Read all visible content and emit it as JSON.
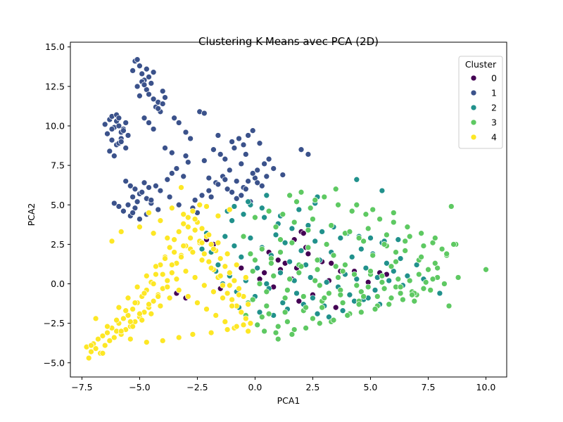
{
  "chart_data": {
    "type": "scatter",
    "title": "Clustering K-Means avec PCA (2D)",
    "xlabel": "PCA1",
    "ylabel": "PCA2",
    "xlim": [
      -8.0,
      10.9
    ],
    "ylim": [
      -5.9,
      15.3
    ],
    "xticks": [
      -7.5,
      -5.0,
      -2.5,
      0.0,
      2.5,
      5.0,
      7.5,
      10.0
    ],
    "xtick_labels": [
      "−7.5",
      "−5.0",
      "−2.5",
      "0.0",
      "2.5",
      "5.0",
      "7.5",
      "10.0"
    ],
    "yticks": [
      -5.0,
      -2.5,
      0.0,
      2.5,
      5.0,
      7.5,
      10.0,
      12.5,
      15.0
    ],
    "ytick_labels": [
      "−5.0",
      "−2.5",
      "0.0",
      "2.5",
      "5.0",
      "7.5",
      "10.0",
      "12.5",
      "15.0"
    ],
    "grid": false,
    "legend": {
      "title": "Cluster",
      "position": "top-right"
    },
    "series": [
      {
        "name": "0",
        "color": "#440154",
        "x": [
          -3.4,
          -3.0,
          -2.1,
          -1.8,
          -0.6,
          0.2,
          0.4,
          0.8,
          1.0,
          1.1,
          1.3,
          1.6,
          1.7,
          1.8,
          1.9,
          2.0,
          2.1,
          2.2,
          2.3,
          2.5,
          2.9,
          3.2,
          3.3,
          3.5,
          3.7,
          4.3,
          4.9,
          5.4,
          5.7,
          6.1,
          -1.5,
          0.6
        ],
        "y": [
          -0.6,
          -0.9,
          2.8,
          2.5,
          1.0,
          0.3,
          0.7,
          -0.2,
          1.5,
          0.9,
          1.3,
          0.3,
          2.8,
          1.0,
          -1.1,
          3.3,
          3.2,
          2.3,
          1.9,
          -0.7,
          1.4,
          0.2,
          1.3,
          -1.5,
          0.8,
          0.8,
          0.1,
          0.7,
          0.6,
          1.4,
          -0.3,
          2.0
        ]
      },
      {
        "name": "1",
        "color": "#3b528b",
        "x": [
          -6.5,
          -6.3,
          -6.2,
          -6.1,
          -6.0,
          -5.9,
          -5.8,
          -5.7,
          -5.6,
          -5.5,
          -6.4,
          -6.2,
          -6.0,
          -5.8,
          -5.6,
          -6.3,
          -6.1,
          -5.9,
          -5.7,
          -6.0,
          -5.8,
          -6.2,
          -5.9,
          -5.3,
          -5.2,
          -5.1,
          -5.0,
          -4.9,
          -4.8,
          -4.7,
          -4.6,
          -4.5,
          -4.4,
          -5.1,
          -4.9,
          -4.7,
          -5.0,
          -4.8,
          -4.6,
          -4.4,
          -4.3,
          -4.2,
          -4.1,
          -4.0,
          -3.9,
          -4.2,
          -4.0,
          -4.6,
          -4.8,
          -4.4,
          -3.9,
          -3.6,
          -3.5,
          -3.3,
          -3.0,
          -2.8,
          -2.4,
          -2.2,
          -1.8,
          -1.6,
          -1.5,
          -1.3,
          -1.0,
          -0.9,
          -0.7,
          -0.5,
          -0.3,
          -0.1,
          0.2,
          -0.4,
          -0.6,
          -1.1,
          -1.4,
          -1.7,
          -2.0,
          -1.2,
          -0.8,
          0.1,
          0.4,
          0.6,
          2.0,
          2.3,
          -5.6,
          -5.4,
          -5.2,
          -5.0,
          -4.8,
          -4.6,
          -5.3,
          -5.1,
          -4.9,
          -4.7,
          -4.5,
          -5.5,
          -5.2,
          -4.3,
          -4.1,
          -3.8,
          -3.6,
          -3.4,
          -3.1,
          -2.9,
          -2.6,
          -2.3,
          -2.0,
          -1.6,
          -1.3,
          -1.0,
          -0.8,
          -0.5,
          -0.2,
          0.0,
          0.3,
          -5.9,
          -5.7,
          -6.1,
          -4.5,
          -4.2,
          -3.7,
          -3.3,
          -5.4,
          -5.3,
          -5.0,
          -4.7,
          -2.7,
          -2.5,
          -0.6,
          -0.4,
          0.1,
          0.5,
          0.8,
          1.2,
          -1.9,
          -0.1,
          -0.3,
          -2.2,
          -3.0
        ],
        "y": [
          10.1,
          10.4,
          10.6,
          9.9,
          10.3,
          10.0,
          9.6,
          9.8,
          10.2,
          9.4,
          9.5,
          9.1,
          8.8,
          9.2,
          8.6,
          8.4,
          8.1,
          8.9,
          9.7,
          10.7,
          9.0,
          9.8,
          10.5,
          13.5,
          14.1,
          14.2,
          13.8,
          13.3,
          12.9,
          13.6,
          13.1,
          12.7,
          13.4,
          12.5,
          12.8,
          12.3,
          11.9,
          12.6,
          12.0,
          11.7,
          11.2,
          11.5,
          10.9,
          12.2,
          11.8,
          11.1,
          11.4,
          10.2,
          10.5,
          9.8,
          8.6,
          8.3,
          10.5,
          10.2,
          9.6,
          9.2,
          10.9,
          10.8,
          8.5,
          9.4,
          8.2,
          7.9,
          9.0,
          8.6,
          9.2,
          8.8,
          9.4,
          9.7,
          8.9,
          8.2,
          7.6,
          7.2,
          6.8,
          6.4,
          6.7,
          6.0,
          6.5,
          7.2,
          7.6,
          7.9,
          8.5,
          8.2,
          6.5,
          6.2,
          6.0,
          5.7,
          6.4,
          6.1,
          5.5,
          5.2,
          5.8,
          5.4,
          5.1,
          5.0,
          4.8,
          6.2,
          5.9,
          6.6,
          7.0,
          7.3,
          6.8,
          7.7,
          5.3,
          5.6,
          5.9,
          6.3,
          6.6,
          5.8,
          5.4,
          6.1,
          5.2,
          6.7,
          6.2,
          4.9,
          4.6,
          5.1,
          5.3,
          4.7,
          5.5,
          5.0,
          4.3,
          4.5,
          4.1,
          4.4,
          4.8,
          4.5,
          5.6,
          6.0,
          6.4,
          6.8,
          7.3,
          6.9,
          5.5,
          7.0,
          6.5,
          7.8,
          8.1
        ]
      },
      {
        "name": "2",
        "color": "#21918c",
        "x": [
          -2.1,
          -1.9,
          -1.6,
          -1.3,
          -1.1,
          -0.9,
          -0.6,
          -0.4,
          -0.2,
          0.1,
          0.3,
          0.5,
          0.7,
          0.9,
          1.1,
          1.3,
          1.5,
          1.7,
          2.0,
          2.2,
          2.4,
          2.6,
          2.8,
          3.1,
          3.3,
          3.5,
          3.7,
          3.9,
          4.2,
          4.4,
          4.6,
          4.8,
          5.1,
          5.3,
          5.5,
          5.7,
          6.0,
          6.3,
          6.6,
          7.0,
          -1.4,
          -0.8,
          0.0,
          0.6,
          1.2,
          1.8,
          2.5,
          3.0,
          3.6,
          4.1,
          4.7,
          5.2,
          5.8,
          -1.0,
          -0.5,
          0.4,
          1.0,
          1.6,
          2.3,
          2.9,
          3.4,
          4.0,
          4.5,
          5.0,
          5.6,
          6.2,
          -2.3,
          -1.7,
          -0.7,
          0.2,
          0.8,
          1.4,
          2.1,
          2.7,
          3.2,
          3.8,
          4.3,
          4.9,
          5.4,
          6.4,
          7.3,
          8.0,
          4.4,
          5.5,
          2.7,
          0.3,
          -0.2,
          -1.2,
          -0.9,
          -0.3,
          0.5,
          1.1,
          1.9,
          2.6
        ],
        "y": [
          3.2,
          2.0,
          1.2,
          3.0,
          0.5,
          2.4,
          1.7,
          0.2,
          2.9,
          1.0,
          2.3,
          0.0,
          1.8,
          3.1,
          0.7,
          2.6,
          1.4,
          0.2,
          2.1,
          1.2,
          0.4,
          2.7,
          1.5,
          0.1,
          2.0,
          1.1,
          2.9,
          0.6,
          1.7,
          0.3,
          2.2,
          1.0,
          1.9,
          0.4,
          2.6,
          1.3,
          0.8,
          1.6,
          0.5,
          1.2,
          0.0,
          -0.5,
          -0.8,
          -0.3,
          -1.2,
          -0.6,
          -0.9,
          -1.4,
          -0.2,
          -0.7,
          -1.0,
          -0.4,
          0.2,
          4.0,
          4.4,
          4.2,
          3.8,
          3.5,
          3.7,
          3.3,
          3.6,
          3.2,
          3.0,
          2.9,
          2.7,
          2.8,
          2.2,
          0.8,
          -1.5,
          -1.8,
          -2.0,
          -1.6,
          -1.3,
          -1.9,
          -2.1,
          -1.7,
          -1.1,
          -0.9,
          -1.3,
          -0.1,
          0.3,
          -0.6,
          6.6,
          5.9,
          5.5,
          4.8,
          5.0,
          4.6,
          4.9,
          5.2,
          5.6,
          4.3,
          4.7,
          5.1
        ]
      },
      {
        "name": "3",
        "color": "#5ec962",
        "x": [
          -0.5,
          -0.3,
          -0.1,
          0.1,
          0.3,
          0.5,
          0.7,
          0.9,
          1.1,
          1.3,
          1.5,
          1.7,
          1.9,
          2.1,
          2.3,
          2.5,
          2.7,
          2.9,
          3.1,
          3.3,
          3.5,
          3.7,
          3.9,
          4.1,
          4.3,
          4.5,
          4.7,
          4.9,
          5.1,
          5.3,
          5.5,
          5.7,
          5.9,
          6.1,
          6.3,
          6.5,
          6.7,
          6.9,
          7.1,
          7.3,
          7.5,
          7.7,
          7.9,
          8.1,
          8.3,
          8.5,
          8.7,
          10.0,
          -0.2,
          0.4,
          1.0,
          1.6,
          2.2,
          2.8,
          3.4,
          4.0,
          4.6,
          5.2,
          5.8,
          6.4,
          7.0,
          7.6,
          8.2,
          0.0,
          0.6,
          1.2,
          1.8,
          2.4,
          3.0,
          3.6,
          4.2,
          4.8,
          5.4,
          6.0,
          6.6,
          7.2,
          7.8,
          0.2,
          0.8,
          1.4,
          2.0,
          2.6,
          3.2,
          3.8,
          4.4,
          5.0,
          5.6,
          6.2,
          6.8,
          7.4,
          -0.4,
          0.5,
          1.3,
          2.1,
          2.9,
          3.7,
          4.5,
          5.3,
          6.1,
          6.9,
          7.7,
          8.4,
          0.9,
          1.7,
          2.5,
          3.3,
          4.1,
          4.9,
          5.7,
          6.5,
          7.3,
          8.6,
          8.8,
          1.5,
          2.0,
          2.6,
          3.5,
          4.4,
          5.1,
          6.0,
          1.0,
          0.3,
          -0.1,
          0.6,
          1.4,
          2.2,
          3.0,
          3.8,
          4.6,
          5.5,
          6.3,
          7.1,
          7.9,
          0.0,
          1.1,
          2.3,
          3.4,
          4.5,
          5.6,
          6.7,
          7.8,
          1.9,
          2.8,
          3.9,
          5.0,
          6.1,
          7.2,
          8.3,
          0.7,
          1.6,
          2.7,
          3.6,
          4.7,
          5.9,
          6.8
        ],
        "y": [
          3.0,
          -1.2,
          0.8,
          -2.6,
          2.2,
          -0.5,
          1.6,
          -3.1,
          2.8,
          -1.8,
          0.3,
          -2.9,
          1.2,
          -0.8,
          3.4,
          -2.2,
          0.9,
          -1.5,
          2.5,
          -2.4,
          1.1,
          -0.4,
          3.2,
          -1.9,
          0.6,
          -1.1,
          2.7,
          -0.2,
          1.8,
          -1.4,
          0.5,
          2.4,
          -0.9,
          1.4,
          -0.6,
          2.1,
          0.2,
          -1.1,
          1.5,
          -0.3,
          0.9,
          2.6,
          0.4,
          2.2,
          1.8,
          4.9,
          2.5,
          0.9,
          1.9,
          -3.0,
          -2.7,
          -3.2,
          -2.8,
          -2.5,
          -2.3,
          -2.0,
          -1.8,
          -1.6,
          -1.3,
          -1.0,
          -0.7,
          -0.4,
          0.0,
          4.2,
          4.6,
          4.4,
          5.2,
          4.8,
          5.5,
          5.0,
          4.6,
          4.4,
          4.1,
          3.9,
          3.6,
          3.2,
          2.9,
          0.0,
          0.5,
          -0.4,
          1.1,
          0.2,
          -0.6,
          0.8,
          -0.1,
          0.6,
          -0.3,
          0.3,
          -0.5,
          0.1,
          -2.0,
          -1.4,
          -0.9,
          -1.7,
          -1.1,
          -0.7,
          -1.3,
          -0.8,
          -0.2,
          -0.6,
          0.3,
          -1.4,
          3.6,
          3.9,
          4.1,
          3.7,
          3.3,
          3.5,
          3.1,
          2.7,
          2.4,
          2.5,
          0.4,
          5.6,
          5.8,
          5.3,
          6.0,
          5.0,
          4.7,
          4.5,
          -3.5,
          -2.1,
          -1.0,
          -1.9,
          -2.4,
          -1.5,
          -0.9,
          -1.2,
          -0.5,
          0.1,
          -0.2,
          0.6,
          1.0,
          1.5,
          2.0,
          2.3,
          1.8,
          2.9,
          2.5,
          3.0,
          1.3,
          0.7,
          -0.1,
          1.2,
          0.8,
          2.0,
          1.7,
          1.9,
          1.3,
          2.6,
          1.5,
          0.4,
          -0.8,
          1.1,
          -0.7
        ]
      },
      {
        "name": "4",
        "color": "#fde725",
        "x": [
          -7.3,
          -7.2,
          -7.1,
          -7.0,
          -6.9,
          -6.8,
          -6.7,
          -6.6,
          -6.5,
          -6.4,
          -6.3,
          -6.2,
          -6.1,
          -6.0,
          -5.9,
          -5.8,
          -5.7,
          -5.6,
          -5.5,
          -5.4,
          -5.3,
          -5.2,
          -5.1,
          -5.0,
          -4.9,
          -4.8,
          -4.7,
          -4.6,
          -4.5,
          -4.4,
          -4.3,
          -4.2,
          -4.1,
          -4.0,
          -3.9,
          -3.8,
          -3.7,
          -3.6,
          -3.5,
          -3.4,
          -3.3,
          -3.2,
          -3.1,
          -3.0,
          -2.9,
          -2.8,
          -2.7,
          -2.6,
          -2.5,
          -2.4,
          -2.3,
          -2.2,
          -2.1,
          -2.0,
          -1.9,
          -1.8,
          -1.7,
          -1.6,
          -1.5,
          -1.4,
          -1.3,
          -1.2,
          -1.1,
          -1.0,
          -0.9,
          -0.8,
          -0.7,
          -0.6,
          -0.5,
          -0.4,
          -0.3,
          -0.2,
          -7.1,
          -6.8,
          -6.4,
          -6.0,
          -5.6,
          -5.2,
          -4.8,
          -4.4,
          -4.0,
          -3.6,
          -3.2,
          -2.8,
          -2.4,
          -2.0,
          -1.6,
          -1.2,
          -0.8,
          -0.4,
          -5.9,
          -5.5,
          -5.1,
          -4.7,
          -4.3,
          -3.9,
          -3.5,
          -3.1,
          -2.7,
          -2.3,
          -1.9,
          -1.5,
          -1.1,
          -0.7,
          -5.4,
          -5.0,
          -4.6,
          -4.2,
          -3.8,
          -3.4,
          -3.0,
          -2.6,
          -2.2,
          -1.8,
          -1.4,
          -1.0,
          -0.6,
          -5.8,
          -5.3,
          -4.9,
          -4.5,
          -4.1,
          -3.7,
          -3.3,
          -2.9,
          -2.5,
          -2.1,
          -1.7,
          -1.3,
          -0.9,
          -4.6,
          -4.1,
          -3.6,
          -3.1,
          -2.6,
          -2.1,
          -1.6,
          -1.1,
          -3.2,
          -2.4,
          -6.2,
          -5.8,
          -5.0,
          -4.4,
          -3.8,
          -2.9,
          -2.3,
          -1.8,
          -0.5,
          -0.3,
          -5.4,
          -4.7,
          -4.0,
          -3.3,
          -2.7,
          -1.9,
          -1.2,
          -0.8,
          -6.6,
          -6.9
        ],
        "y": [
          -4.0,
          -4.7,
          -4.3,
          -3.8,
          -4.1,
          -3.5,
          -4.4,
          -3.3,
          -3.9,
          -3.1,
          -3.6,
          -2.8,
          -3.4,
          -3.0,
          -2.5,
          -3.2,
          -2.2,
          -2.9,
          -2.0,
          -2.7,
          -1.6,
          -2.4,
          -1.2,
          -2.1,
          -0.8,
          -1.8,
          -0.4,
          -1.5,
          0.1,
          -1.1,
          0.6,
          -0.7,
          1.2,
          -0.3,
          1.7,
          0.2,
          2.3,
          0.7,
          2.8,
          1.3,
          3.3,
          1.8,
          3.8,
          2.4,
          4.2,
          2.9,
          4.6,
          3.4,
          3.9,
          2.6,
          3.5,
          1.9,
          3.0,
          1.4,
          2.5,
          0.9,
          2.1,
          0.4,
          1.6,
          -0.1,
          1.1,
          -0.6,
          0.7,
          -1.0,
          0.2,
          -1.4,
          -0.3,
          -1.8,
          -0.8,
          -2.2,
          -1.3,
          -2.5,
          -3.9,
          -3.5,
          -2.7,
          -2.3,
          -1.7,
          -1.2,
          -0.6,
          0.0,
          0.6,
          1.2,
          1.7,
          2.2,
          2.7,
          3.1,
          2.6,
          1.9,
          1.2,
          0.4,
          -1.5,
          -0.9,
          -0.2,
          0.5,
          1.1,
          1.6,
          2.0,
          2.4,
          2.0,
          1.5,
          1.0,
          0.5,
          -0.1,
          -0.7,
          -2.4,
          -1.9,
          -1.3,
          -0.8,
          -0.2,
          0.3,
          0.8,
          0.4,
          -0.1,
          -0.5,
          -0.9,
          -1.4,
          -1.8,
          -3.0,
          -2.7,
          -2.3,
          -1.9,
          -1.4,
          -0.9,
          -0.4,
          -0.8,
          -1.2,
          -1.6,
          -2.0,
          -2.4,
          -2.8,
          4.5,
          4.0,
          4.8,
          4.4,
          4.1,
          4.9,
          4.3,
          4.7,
          6.1,
          5.0,
          2.7,
          3.3,
          3.6,
          3.2,
          2.9,
          3.6,
          2.6,
          2.2,
          -2.6,
          -3.0,
          -3.5,
          -3.7,
          -3.6,
          -3.4,
          -3.2,
          -3.1,
          -2.9,
          -2.7,
          -4.4,
          -2.2
        ]
      }
    ]
  }
}
